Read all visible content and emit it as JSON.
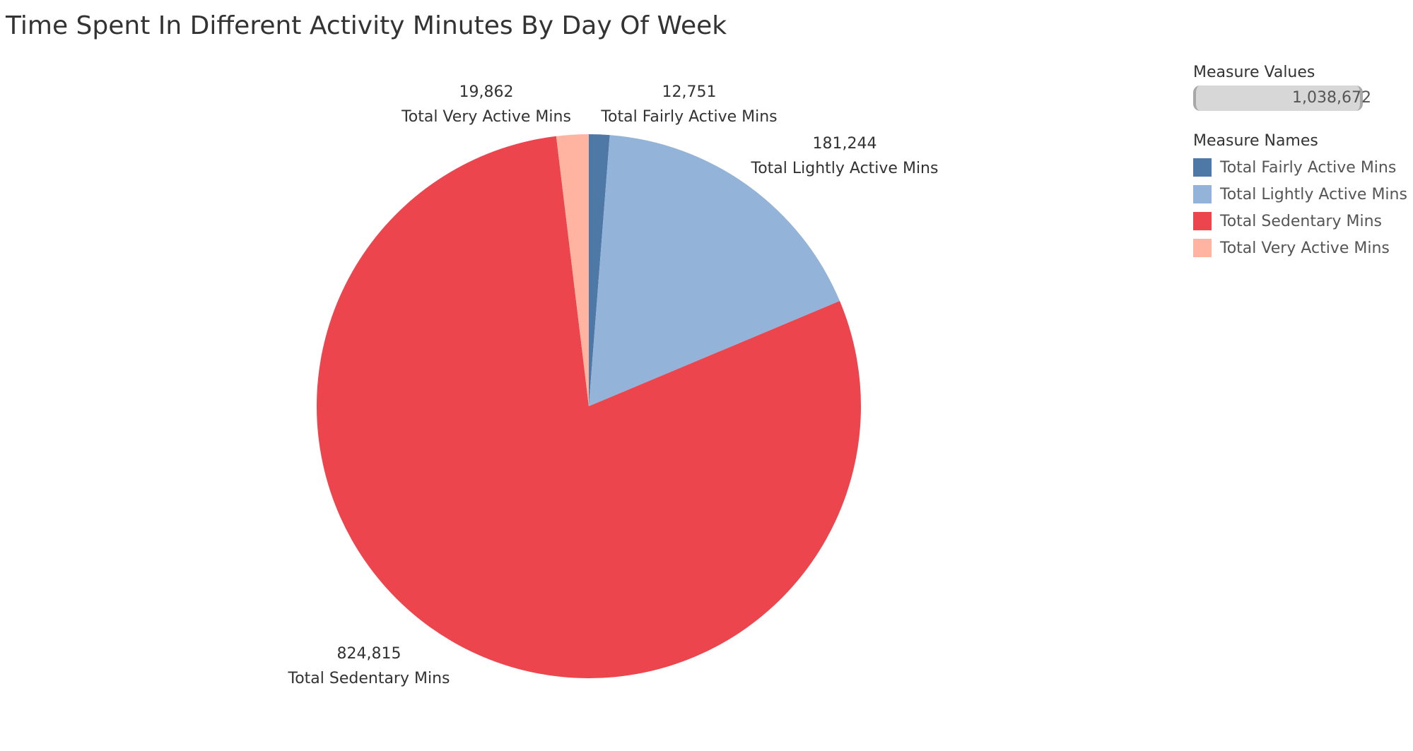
{
  "chart_data": {
    "type": "pie",
    "title": "Time Spent In Different Activity Minutes By Day Of Week",
    "slices": [
      {
        "name": "Total Fairly Active Mins",
        "value": 12751,
        "label_value": "12,751",
        "color": "#4e79a7"
      },
      {
        "name": "Total Lightly Active Mins",
        "value": 181244,
        "label_value": "181,244",
        "color": "#94b3d8"
      },
      {
        "name": "Total Sedentary Mins",
        "value": 824815,
        "label_value": "824,815",
        "color": "#ec454d"
      },
      {
        "name": "Total Very Active Mins",
        "value": 19862,
        "label_value": "19,862",
        "color": "#ffb4a2"
      }
    ],
    "legend": {
      "measure_values_title": "Measure Values",
      "measure_values_total": "1,038,672",
      "measure_names_title": "Measure Names",
      "placement": "right"
    }
  }
}
